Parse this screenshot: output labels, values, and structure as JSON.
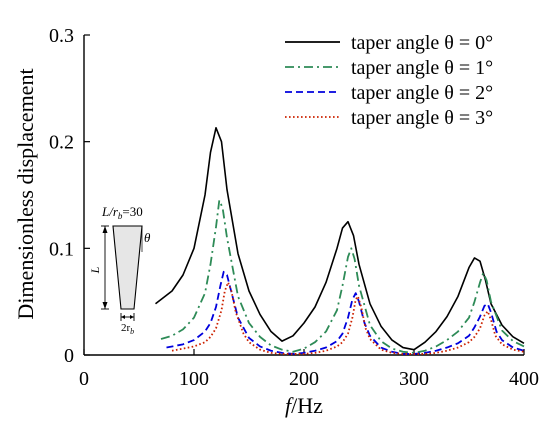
{
  "chart_data": {
    "type": "line",
    "xlabel_italic": "f",
    "xlabel_unit": "/Hz",
    "ylabel": "Dimensionless displacement",
    "xlim": [
      0,
      400
    ],
    "ylim": [
      0,
      0.3
    ],
    "xticks": [
      "0",
      "100",
      "200",
      "300",
      "400"
    ],
    "yticks": [
      "0",
      "0.1",
      "0.2",
      "0.3"
    ],
    "legend_position": "top-right",
    "series": [
      {
        "name": "taper angle  θ = 0°",
        "color": "#000000",
        "dash": "",
        "x": [
          65,
          80,
          90,
          100,
          110,
          115,
          120,
          125,
          130,
          140,
          150,
          160,
          170,
          180,
          190,
          200,
          210,
          220,
          230,
          235,
          240,
          245,
          250,
          260,
          270,
          280,
          290,
          300,
          310,
          320,
          330,
          340,
          350,
          355,
          360,
          365,
          370,
          380,
          390,
          400
        ],
        "y": [
          0.048,
          0.06,
          0.075,
          0.1,
          0.15,
          0.19,
          0.213,
          0.2,
          0.155,
          0.095,
          0.06,
          0.038,
          0.022,
          0.013,
          0.018,
          0.03,
          0.045,
          0.068,
          0.1,
          0.119,
          0.125,
          0.112,
          0.085,
          0.048,
          0.027,
          0.014,
          0.007,
          0.005,
          0.012,
          0.022,
          0.036,
          0.055,
          0.082,
          0.091,
          0.088,
          0.07,
          0.048,
          0.028,
          0.017,
          0.011
        ]
      },
      {
        "name": "taper angle  θ = 1°",
        "color": "#2e8b57",
        "dash": "9,4,2,4",
        "x": [
          70,
          80,
          90,
          100,
          110,
          115,
          120,
          123,
          126,
          130,
          140,
          150,
          160,
          170,
          180,
          190,
          200,
          210,
          220,
          230,
          235,
          240,
          243,
          246,
          250,
          260,
          270,
          280,
          290,
          300,
          310,
          320,
          330,
          340,
          350,
          355,
          360,
          363,
          366,
          370,
          380,
          390,
          400
        ],
        "y": [
          0.015,
          0.018,
          0.024,
          0.035,
          0.058,
          0.085,
          0.12,
          0.145,
          0.138,
          0.11,
          0.055,
          0.03,
          0.017,
          0.009,
          0.005,
          0.003,
          0.006,
          0.012,
          0.022,
          0.042,
          0.065,
          0.092,
          0.1,
          0.09,
          0.065,
          0.028,
          0.013,
          0.006,
          0.003,
          0.002,
          0.004,
          0.008,
          0.014,
          0.022,
          0.035,
          0.05,
          0.068,
          0.077,
          0.07,
          0.05,
          0.023,
          0.013,
          0.008
        ]
      },
      {
        "name": "taper angle  θ = 2°",
        "color": "#0000dd",
        "dash": "7,4",
        "x": [
          75,
          90,
          100,
          110,
          115,
          120,
          124,
          127,
          130,
          135,
          140,
          150,
          160,
          170,
          180,
          190,
          200,
          210,
          220,
          230,
          235,
          240,
          244,
          247,
          250,
          255,
          260,
          270,
          280,
          290,
          300,
          310,
          320,
          330,
          340,
          350,
          355,
          360,
          364,
          367,
          370,
          375,
          380,
          390,
          400
        ],
        "y": [
          0.007,
          0.01,
          0.014,
          0.022,
          0.03,
          0.045,
          0.065,
          0.078,
          0.075,
          0.055,
          0.035,
          0.016,
          0.008,
          0.004,
          0.002,
          0.001,
          0.002,
          0.004,
          0.007,
          0.013,
          0.02,
          0.035,
          0.052,
          0.058,
          0.05,
          0.03,
          0.018,
          0.007,
          0.003,
          0.001,
          0.001,
          0.002,
          0.004,
          0.007,
          0.011,
          0.018,
          0.026,
          0.036,
          0.046,
          0.048,
          0.04,
          0.022,
          0.014,
          0.007,
          0.004
        ]
      },
      {
        "name": "taper angle  θ = 3°",
        "color": "#cc2200",
        "dash": "1.6,2.4",
        "x": [
          80,
          100,
          110,
          115,
          120,
          125,
          128,
          131,
          134,
          138,
          145,
          150,
          160,
          170,
          180,
          190,
          200,
          210,
          220,
          230,
          235,
          240,
          244,
          247,
          249,
          252,
          256,
          260,
          270,
          280,
          290,
          300,
          310,
          320,
          330,
          340,
          350,
          355,
          360,
          364,
          367,
          370,
          374,
          380,
          390,
          400
        ],
        "y": [
          0.004,
          0.008,
          0.012,
          0.017,
          0.025,
          0.042,
          0.06,
          0.068,
          0.06,
          0.04,
          0.02,
          0.012,
          0.005,
          0.002,
          0.001,
          0.001,
          0.001,
          0.002,
          0.004,
          0.008,
          0.012,
          0.02,
          0.035,
          0.052,
          0.055,
          0.045,
          0.025,
          0.015,
          0.005,
          0.002,
          0.001,
          0.001,
          0.001,
          0.002,
          0.004,
          0.007,
          0.012,
          0.017,
          0.025,
          0.037,
          0.041,
          0.033,
          0.018,
          0.01,
          0.005,
          0.003
        ]
      }
    ]
  },
  "inset": {
    "ratio_prefix": "L/r",
    "ratio_sub": "b",
    "ratio_value": "=30",
    "length_label": "L",
    "angle_label": "θ",
    "radius_prefix": "2r",
    "radius_sub": "b"
  }
}
